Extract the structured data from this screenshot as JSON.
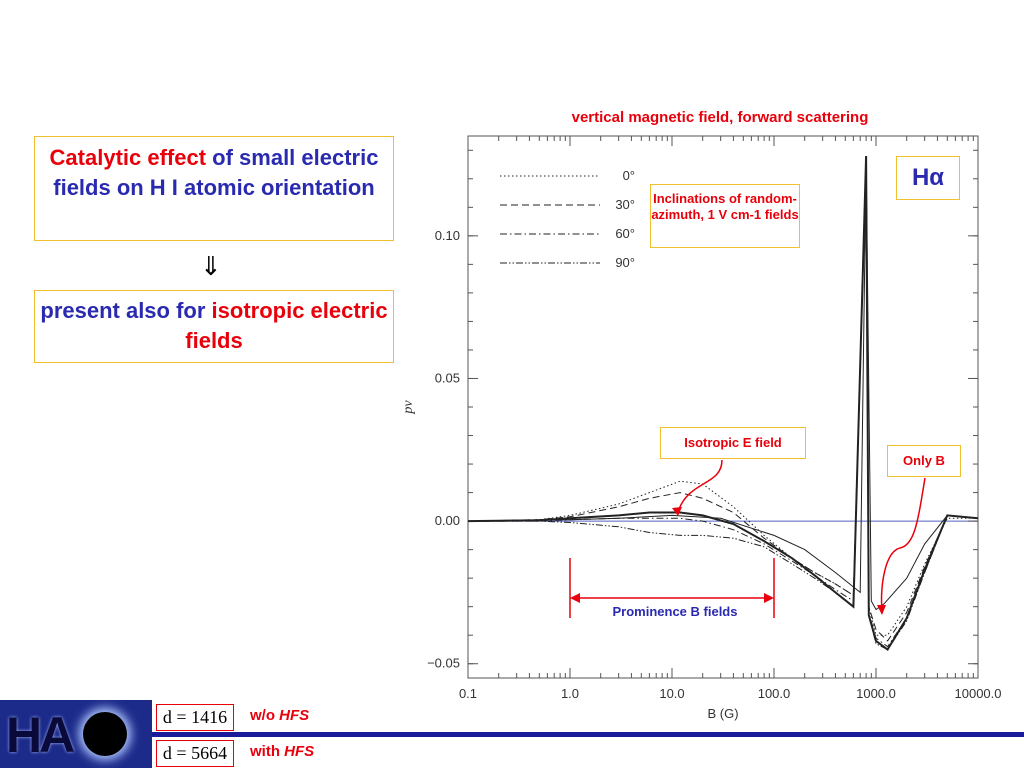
{
  "left_panel": {
    "catalytic": {
      "part1": "Catalytic effect",
      "part2": " of small electric fields on H I atomic orientation"
    },
    "arrow": "⇓",
    "present": {
      "part1": "present also for ",
      "part2": "isotropic electric fields"
    }
  },
  "chart_data": {
    "type": "line",
    "title": "vertical magnetic field, forward scattering",
    "xlabel": "B (G)",
    "ylabel": "pv",
    "xscale": "log",
    "xlim": [
      0.1,
      10000.0
    ],
    "ylim": [
      -0.055,
      0.135
    ],
    "xticks": [
      "0.1",
      "1.0",
      "10.0",
      "100.0",
      "1000.0",
      "10000.0"
    ],
    "yticks": [
      "0.10",
      "0.05",
      "0.00",
      "−0.05"
    ],
    "grid": false,
    "legend_position": "top-left",
    "series": [
      {
        "name": "0°",
        "style": "dotted",
        "x": [
          0.1,
          0.5,
          1,
          3,
          6,
          12,
          20,
          40,
          80,
          150,
          250,
          400,
          600,
          800,
          850,
          1000,
          1300,
          2000,
          3000,
          5000,
          10000
        ],
        "y": [
          0.0,
          0.0005,
          0.002,
          0.006,
          0.01,
          0.014,
          0.013,
          0.005,
          -0.005,
          -0.013,
          -0.018,
          -0.022,
          -0.026,
          0.125,
          -0.03,
          -0.04,
          -0.04,
          -0.03,
          -0.015,
          0.001,
          0.001
        ]
      },
      {
        "name": "30°",
        "style": "dashed",
        "x": [
          0.1,
          0.5,
          1,
          3,
          6,
          12,
          20,
          40,
          80,
          150,
          250,
          400,
          600,
          800,
          850,
          1000,
          1300,
          2000,
          3000,
          5000,
          10000
        ],
        "y": [
          0.0,
          0.0005,
          0.0015,
          0.005,
          0.008,
          0.01,
          0.008,
          0.003,
          -0.006,
          -0.013,
          -0.018,
          -0.022,
          -0.026,
          0.127,
          -0.03,
          -0.038,
          -0.042,
          -0.032,
          -0.016,
          0.002,
          0.001
        ]
      },
      {
        "name": "60°",
        "style": "dashdot",
        "x": [
          0.1,
          0.5,
          1,
          3,
          6,
          12,
          20,
          40,
          80,
          150,
          250,
          400,
          600,
          800,
          850,
          1000,
          1300,
          2000,
          3000,
          5000,
          10000
        ],
        "y": [
          0.0,
          0.0,
          0.0005,
          0.001,
          0.001,
          0.001,
          0.0,
          -0.003,
          -0.008,
          -0.014,
          -0.019,
          -0.024,
          -0.028,
          0.126,
          -0.032,
          -0.041,
          -0.044,
          -0.034,
          -0.018,
          0.002,
          0.001
        ]
      },
      {
        "name": "90°",
        "style": "dashdotdot",
        "x": [
          0.1,
          0.5,
          1,
          3,
          6,
          12,
          20,
          40,
          80,
          150,
          250,
          400,
          600,
          800,
          850,
          1000,
          1300,
          2000,
          3000,
          5000,
          10000
        ],
        "y": [
          0.0,
          0.0,
          -0.0005,
          -0.002,
          -0.004,
          -0.005,
          -0.005,
          -0.006,
          -0.009,
          -0.015,
          -0.02,
          -0.025,
          -0.03,
          0.124,
          -0.033,
          -0.043,
          -0.045,
          -0.035,
          -0.018,
          0.002,
          0.001
        ]
      },
      {
        "style": "solid-bold",
        "x": [
          0.1,
          0.5,
          1,
          3,
          6,
          12,
          20,
          40,
          80,
          150,
          250,
          400,
          600,
          800,
          850,
          1000,
          1300,
          2000,
          3000,
          5000,
          10000
        ],
        "y": [
          0.0,
          0.0003,
          0.001,
          0.002,
          0.003,
          0.003,
          0.002,
          -0.001,
          -0.007,
          -0.013,
          -0.019,
          -0.025,
          -0.03,
          0.128,
          -0.033,
          -0.042,
          -0.045,
          -0.034,
          -0.017,
          0.002,
          0.001
        ]
      },
      {
        "style": "solid-thin",
        "x": [
          0.1,
          1,
          3,
          10,
          30,
          100,
          200,
          400,
          700,
          800,
          900,
          1000,
          1200,
          2000,
          3000,
          5000,
          10000
        ],
        "y": [
          0.0,
          0.0005,
          0.001,
          0.002,
          0.001,
          -0.005,
          -0.01,
          -0.018,
          -0.025,
          0.126,
          -0.028,
          -0.031,
          -0.029,
          -0.02,
          -0.008,
          0.002,
          0.001
        ]
      }
    ],
    "annotations": {
      "line_label": "Hα",
      "inclinations": "Inclinations of random-azimuth, 1 V cm-1 fields",
      "isotropic": "Isotropic E field",
      "only_b": "Only B",
      "prominence": "Prominence B fields"
    }
  },
  "footer": {
    "logo_text": "HA",
    "d1": "d = 1416",
    "d2": "d = 5664",
    "label1": {
      "prefix": "w/o ",
      "hfs": "HFS"
    },
    "label2": {
      "prefix": "with ",
      "hfs": "HFS"
    }
  },
  "colors": {
    "accent_red": "#e8000b",
    "accent_blue": "#2a2ab0",
    "box_border": "#f0c030"
  }
}
